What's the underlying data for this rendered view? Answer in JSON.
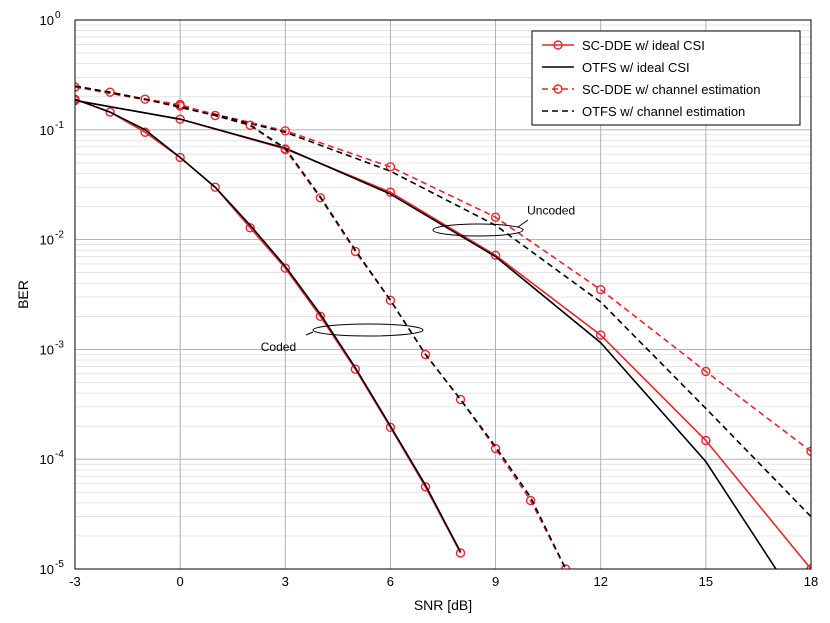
{
  "chart_data": {
    "type": "line",
    "xlabel": "SNR [dB]",
    "ylabel": "BER",
    "xlim": [
      -3,
      18
    ],
    "ylim": [
      1e-05,
      1
    ],
    "yscale": "log",
    "grid": true,
    "legend_position": "top-right",
    "x_ticks": [
      "-3",
      "0",
      "3",
      "6",
      "9",
      "12",
      "15",
      "18"
    ],
    "y_ticks": [
      {
        "base": "10",
        "exp": "0"
      },
      {
        "base": "10",
        "exp": "-1"
      },
      {
        "base": "10",
        "exp": "-2"
      },
      {
        "base": "10",
        "exp": "-3"
      },
      {
        "base": "10",
        "exp": "-4"
      },
      {
        "base": "10",
        "exp": "-5"
      }
    ],
    "annotations": [
      {
        "text": "Uncoded",
        "x": 9.9,
        "y": 0.0185
      },
      {
        "text": "Coded",
        "x": 2.3,
        "y": 0.00105
      }
    ],
    "series": [
      {
        "name": "SC-DDE w/ ideal CSI",
        "color": "#e8262d",
        "dash": "solid",
        "marker": "circle",
        "group": "uncoded",
        "points": [
          [
            -3,
            0.185
          ],
          [
            0,
            0.125
          ],
          [
            3,
            0.067
          ],
          [
            6,
            0.027
          ],
          [
            9,
            0.0072
          ],
          [
            12,
            0.00135
          ],
          [
            15,
            0.000148
          ],
          [
            18,
            1e-05
          ]
        ]
      },
      {
        "name": "OTFS w/ ideal CSI",
        "color": "#000000",
        "dash": "solid",
        "marker": "none",
        "group": "uncoded",
        "points": [
          [
            -3,
            0.185
          ],
          [
            0,
            0.125
          ],
          [
            3,
            0.068
          ],
          [
            6,
            0.026
          ],
          [
            9,
            0.007
          ],
          [
            12,
            0.00115
          ],
          [
            15,
            9.5e-05
          ],
          [
            17,
            1e-05
          ]
        ]
      },
      {
        "name": "SC-DDE w/ channel estimation",
        "color": "#e8262d",
        "dash": "dashed",
        "marker": "circle",
        "group": "uncoded",
        "points": [
          [
            -3,
            0.245
          ],
          [
            0,
            0.165
          ],
          [
            3,
            0.098
          ],
          [
            6,
            0.046
          ],
          [
            9,
            0.016
          ],
          [
            12,
            0.0035
          ],
          [
            15,
            0.00063
          ],
          [
            18,
            0.000118
          ]
        ]
      },
      {
        "name": "OTFS w/ channel estimation",
        "color": "#000000",
        "dash": "dashed",
        "marker": "none",
        "group": "uncoded",
        "points": [
          [
            -3,
            0.25
          ],
          [
            0,
            0.165
          ],
          [
            3,
            0.095
          ],
          [
            6,
            0.042
          ],
          [
            9,
            0.0135
          ],
          [
            12,
            0.0027
          ],
          [
            15,
            0.00029
          ],
          [
            18,
            3e-05
          ]
        ]
      },
      {
        "name": "",
        "color": "#e8262d",
        "dash": "solid",
        "marker": "circle",
        "group": "coded",
        "points": [
          [
            -3,
            0.19
          ],
          [
            -2,
            0.145
          ],
          [
            -1,
            0.095
          ],
          [
            0,
            0.056
          ],
          [
            1,
            0.03
          ],
          [
            2,
            0.0128
          ],
          [
            3,
            0.0055
          ],
          [
            4,
            0.002
          ],
          [
            5,
            0.00066
          ],
          [
            6,
            0.000195
          ],
          [
            7,
            5.6e-05
          ],
          [
            8,
            1.4e-05
          ]
        ]
      },
      {
        "name": "",
        "color": "#000000",
        "dash": "solid",
        "marker": "none",
        "group": "coded",
        "points": [
          [
            -3,
            0.19
          ],
          [
            -2,
            0.145
          ],
          [
            -1,
            0.1
          ],
          [
            0,
            0.056
          ],
          [
            1,
            0.03
          ],
          [
            2,
            0.0135
          ],
          [
            3,
            0.0057
          ],
          [
            4,
            0.0021
          ],
          [
            5,
            0.00068
          ],
          [
            6,
            0.0002
          ],
          [
            7,
            5.8e-05
          ],
          [
            8,
            1.43e-05
          ]
        ]
      },
      {
        "name": "",
        "color": "#e8262d",
        "dash": "dashed",
        "marker": "circle",
        "group": "coded",
        "points": [
          [
            -3,
            0.245
          ],
          [
            -2,
            0.22
          ],
          [
            -1,
            0.19
          ],
          [
            0,
            0.17
          ],
          [
            1,
            0.135
          ],
          [
            2,
            0.11
          ],
          [
            3,
            0.066
          ],
          [
            4,
            0.024
          ],
          [
            5,
            0.0078
          ],
          [
            6,
            0.0028
          ],
          [
            7,
            0.0009
          ],
          [
            8,
            0.00035
          ],
          [
            9,
            0.000125
          ],
          [
            10,
            4.2e-05
          ],
          [
            11,
            1e-05
          ]
        ]
      },
      {
        "name": "",
        "color": "#000000",
        "dash": "dashed",
        "marker": "none",
        "group": "coded",
        "points": [
          [
            -3,
            0.25
          ],
          [
            -2,
            0.22
          ],
          [
            -1,
            0.19
          ],
          [
            0,
            0.16
          ],
          [
            1,
            0.135
          ],
          [
            2,
            0.11
          ],
          [
            3,
            0.068
          ],
          [
            4,
            0.0245
          ],
          [
            5,
            0.008
          ],
          [
            6,
            0.0028
          ],
          [
            7,
            0.0009
          ],
          [
            8,
            0.00035
          ],
          [
            9,
            0.00013
          ],
          [
            10,
            4.5e-05
          ],
          [
            11,
            1e-05
          ]
        ]
      }
    ]
  }
}
